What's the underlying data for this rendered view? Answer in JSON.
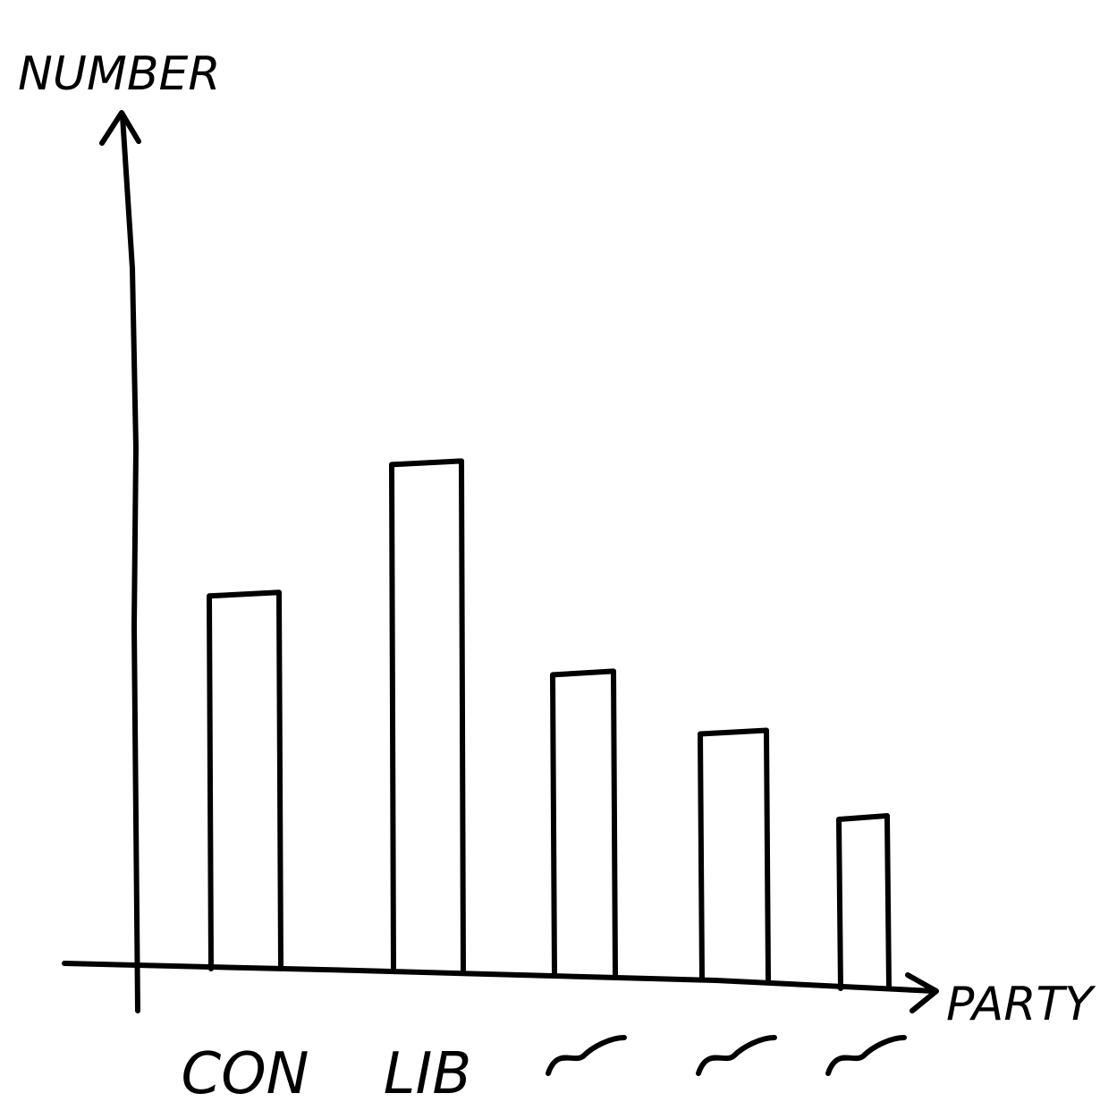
{
  "chart_data": {
    "type": "bar",
    "ylabel": "NUMBER",
    "xlabel": "PARTY",
    "categories": [
      "CON",
      "LIB",
      "",
      "",
      ""
    ],
    "values": [
      57,
      77,
      45,
      36,
      23
    ],
    "ylim": [
      0,
      130
    ],
    "grid": false,
    "legend": "none",
    "ink_color": "#000000",
    "background": "#ffffff"
  }
}
